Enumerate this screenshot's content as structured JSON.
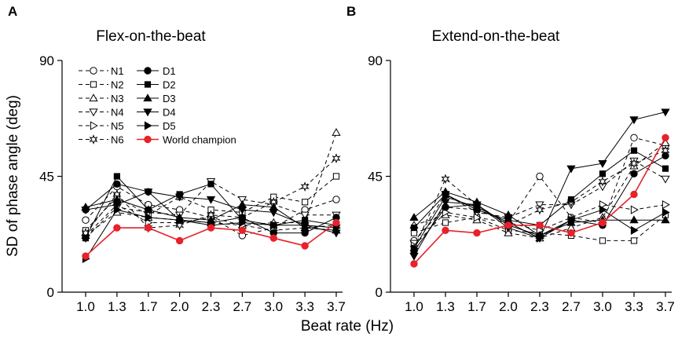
{
  "figure": {
    "x_axis_label": "Beat rate (Hz)",
    "y_axis_label": "SD of phase angle (deg)"
  },
  "chart_data": [
    {
      "type": "line",
      "panel_label": "A",
      "title": "Flex-on-the-beat",
      "xlabel": "Beat rate (Hz)",
      "ylabel": "SD of phase angle (deg)",
      "categories": [
        "1.0",
        "1.3",
        "1.7",
        "2.0",
        "2.3",
        "2.7",
        "3.0",
        "3.3",
        "3.7"
      ],
      "yticks": [
        0,
        45,
        90
      ],
      "ylim": [
        0,
        90
      ],
      "grid": false,
      "legend_position": "top-left",
      "series": [
        {
          "name": "N1",
          "style": "dashed",
          "marker": "circle",
          "filled": false,
          "color": "#000000",
          "values": [
            28,
            41,
            34,
            32,
            29,
            22,
            25,
            32,
            36
          ]
        },
        {
          "name": "N2",
          "style": "dashed",
          "marker": "square",
          "filled": false,
          "color": "#000000",
          "values": [
            24,
            37,
            30,
            37,
            32,
            31,
            37,
            35,
            45
          ]
        },
        {
          "name": "N3",
          "style": "dashed",
          "marker": "triangle-up",
          "filled": false,
          "color": "#000000",
          "values": [
            22,
            31,
            29,
            28,
            27,
            26,
            27,
            27,
            62
          ]
        },
        {
          "name": "N4",
          "style": "dashed",
          "marker": "triangle-down",
          "filled": false,
          "color": "#000000",
          "values": [
            21,
            33,
            31,
            30,
            43,
            36,
            34,
            30,
            30
          ]
        },
        {
          "name": "N5",
          "style": "dashed",
          "marker": "triangle-right",
          "filled": false,
          "color": "#000000",
          "values": [
            22,
            34,
            27,
            27,
            29,
            26,
            24,
            25,
            26
          ]
        },
        {
          "name": "N6",
          "style": "dashed",
          "marker": "star",
          "filled": false,
          "color": "#000000",
          "values": [
            23,
            38,
            25,
            26,
            30,
            29,
            35,
            41,
            52
          ]
        },
        {
          "name": "D1",
          "style": "solid",
          "marker": "circle",
          "filled": true,
          "color": "#000000",
          "values": [
            32,
            42,
            39,
            28,
            27,
            29,
            23,
            23,
            29
          ]
        },
        {
          "name": "D2",
          "style": "solid",
          "marker": "square",
          "filled": true,
          "color": "#000000",
          "values": [
            21,
            45,
            32,
            38,
            42,
            28,
            26,
            28,
            26
          ]
        },
        {
          "name": "D3",
          "style": "solid",
          "marker": "triangle-up",
          "filled": true,
          "color": "#000000",
          "values": [
            33,
            36,
            32,
            29,
            28,
            34,
            33,
            25,
            24
          ]
        },
        {
          "name": "D4",
          "style": "solid",
          "marker": "triangle-down",
          "filled": true,
          "color": "#000000",
          "values": [
            32,
            34,
            39,
            37,
            36,
            32,
            31,
            26,
            23
          ]
        },
        {
          "name": "D5",
          "style": "solid",
          "marker": "triangle-right",
          "filled": true,
          "color": "#000000",
          "values": [
            13,
            32,
            29,
            28,
            26,
            27,
            26,
            26,
            25
          ]
        },
        {
          "name": "World champion",
          "style": "solid",
          "marker": "circle",
          "filled": true,
          "color": "#e8212a",
          "values": [
            14,
            25,
            25,
            20,
            25,
            24,
            21,
            18,
            27
          ]
        }
      ]
    },
    {
      "type": "line",
      "panel_label": "B",
      "title": "Extend-on-the-beat",
      "xlabel": "Beat rate (Hz)",
      "ylabel": "",
      "categories": [
        "1.0",
        "1.3",
        "1.7",
        "2.0",
        "2.3",
        "2.7",
        "3.0",
        "3.3",
        "3.7"
      ],
      "yticks": [
        0,
        45,
        90
      ],
      "ylim": [
        0,
        90
      ],
      "grid": false,
      "series": [
        {
          "name": "N1",
          "style": "dashed",
          "marker": "circle",
          "filled": false,
          "color": "#000000",
          "values": [
            20,
            33,
            32,
            27,
            45,
            29,
            27,
            60,
            57
          ]
        },
        {
          "name": "N2",
          "style": "dashed",
          "marker": "square",
          "filled": false,
          "color": "#000000",
          "values": [
            23,
            27,
            29,
            24,
            23,
            22,
            20,
            20,
            30
          ]
        },
        {
          "name": "N3",
          "style": "dashed",
          "marker": "triangle-up",
          "filled": false,
          "color": "#000000",
          "values": [
            26,
            30,
            28,
            23,
            21,
            25,
            29,
            49,
            58
          ]
        },
        {
          "name": "N4",
          "style": "dashed",
          "marker": "triangle-down",
          "filled": false,
          "color": "#000000",
          "values": [
            19,
            38,
            31,
            29,
            34,
            34,
            41,
            51,
            44
          ]
        },
        {
          "name": "N5",
          "style": "dashed",
          "marker": "triangle-right",
          "filled": false,
          "color": "#000000",
          "values": [
            18,
            31,
            29,
            27,
            24,
            29,
            34,
            32,
            34
          ]
        },
        {
          "name": "N6",
          "style": "dashed",
          "marker": "star",
          "filled": false,
          "color": "#000000",
          "values": [
            17,
            44,
            34,
            26,
            32,
            35,
            43,
            50,
            55
          ]
        },
        {
          "name": "D1",
          "style": "solid",
          "marker": "circle",
          "filled": true,
          "color": "#000000",
          "values": [
            16,
            33,
            34,
            26,
            22,
            28,
            26,
            46,
            53
          ]
        },
        {
          "name": "D2",
          "style": "solid",
          "marker": "square",
          "filled": true,
          "color": "#000000",
          "values": [
            25,
            38,
            32,
            28,
            26,
            36,
            46,
            55,
            48
          ]
        },
        {
          "name": "D3",
          "style": "solid",
          "marker": "triangle-up",
          "filled": true,
          "color": "#000000",
          "values": [
            29,
            39,
            35,
            30,
            22,
            27,
            28,
            28,
            28
          ]
        },
        {
          "name": "D4",
          "style": "solid",
          "marker": "triangle-down",
          "filled": true,
          "color": "#000000",
          "values": [
            14,
            35,
            34,
            25,
            21,
            48,
            50,
            67,
            70
          ]
        },
        {
          "name": "D5",
          "style": "solid",
          "marker": "triangle-right",
          "filled": true,
          "color": "#000000",
          "values": [
            17,
            37,
            33,
            27,
            21,
            28,
            32,
            24,
            31
          ]
        },
        {
          "name": "World champion",
          "style": "solid",
          "marker": "circle",
          "filled": true,
          "color": "#e8212a",
          "values": [
            11,
            24,
            23,
            26,
            26,
            23,
            27,
            38,
            60
          ]
        }
      ]
    }
  ]
}
